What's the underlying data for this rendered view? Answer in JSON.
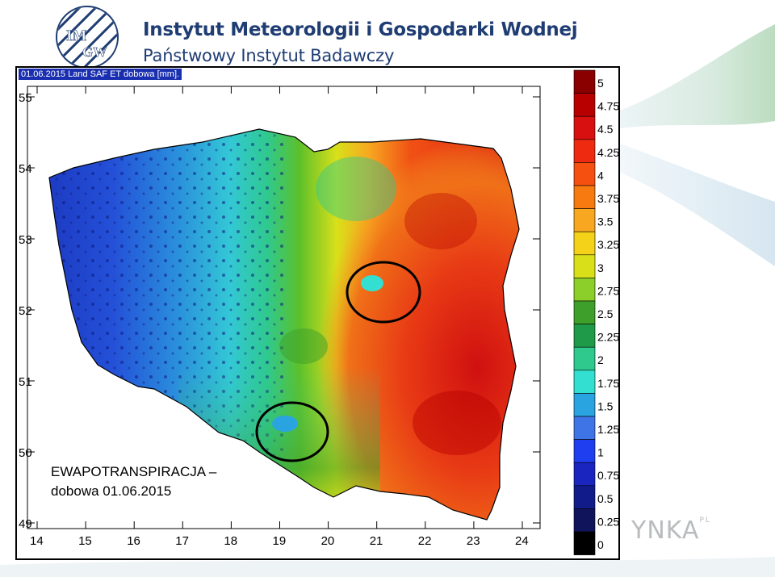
{
  "header": {
    "institute_name": "Instytut Meteorologii i Gospodarki Wodnej",
    "institute_subtitle": "Państwowy Instytut Badawczy",
    "logo_text_top": "IM",
    "logo_text_bottom": "GW"
  },
  "map": {
    "header_label": "01.06.2015 Land SAF ET dobowa [mm].",
    "caption_line1": "EWAPOTRANSPIRACJA –",
    "caption_line2": "dobowa 01.06.2015",
    "y_ticks": [
      "55",
      "54",
      "53",
      "52",
      "51",
      "50",
      "49"
    ],
    "x_ticks": [
      "14",
      "15",
      "16",
      "17",
      "18",
      "19",
      "20",
      "21",
      "22",
      "23",
      "24"
    ],
    "highlighted_areas": 2
  },
  "legend": {
    "labels": [
      "5",
      "4.75",
      "4.5",
      "4.25",
      "4",
      "3.75",
      "3.5",
      "3.25",
      "3",
      "2.75",
      "2.5",
      "2.25",
      "2",
      "1.75",
      "1.5",
      "1.25",
      "1",
      "0.75",
      "0.5",
      "0.25",
      "0"
    ],
    "colors": [
      "#8a0000",
      "#b80000",
      "#d81010",
      "#ee2a10",
      "#f55010",
      "#f77a10",
      "#f7a820",
      "#f4d21a",
      "#d9e01a",
      "#8ccf2a",
      "#3ea02a",
      "#1f9a48",
      "#2fc98e",
      "#33dfd0",
      "#2aa4e0",
      "#3f74e6",
      "#1f3ef0",
      "#1a25bf",
      "#121b8a",
      "#10145a",
      "#000000"
    ]
  },
  "watermark": {
    "text": "YNKA",
    "suffix": "PL"
  }
}
